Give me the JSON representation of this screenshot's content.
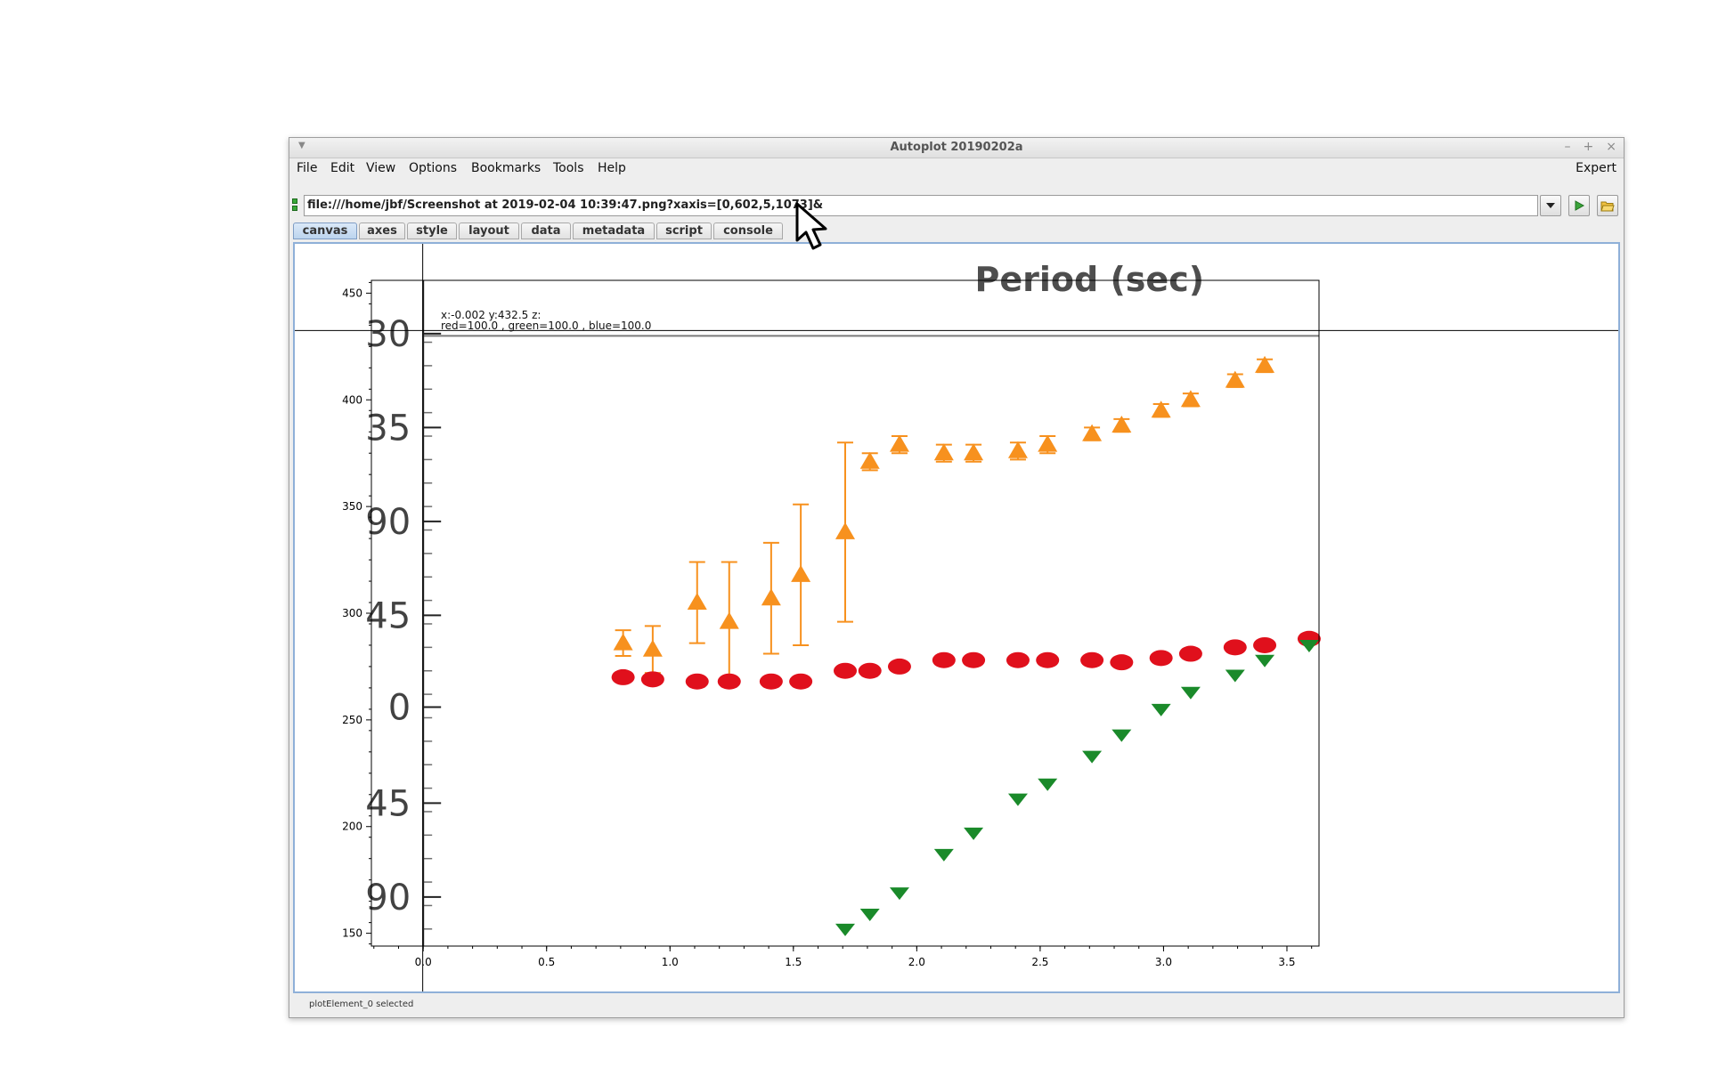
{
  "window": {
    "title": "Autoplot 20190202a",
    "controls": {
      "minimize": "–",
      "maximize": "+",
      "close": "×"
    }
  },
  "menubar": {
    "items": [
      "File",
      "Edit",
      "View",
      "Options",
      "Bookmarks",
      "Tools",
      "Help"
    ],
    "expert_label": "Expert"
  },
  "url": {
    "value": "file:///home/jbf/Screenshot at 2019-02-04 10:39:47.png?xaxis=[0,602,5,1073]&"
  },
  "tabs": [
    "canvas",
    "axes",
    "style",
    "layout",
    "data",
    "metadata",
    "script",
    "console"
  ],
  "readout": {
    "line1": "x:-0.002  y:432.5  z:",
    "line2": "red=100.0 , green=100.0 , blue=100.0"
  },
  "status": "plotElement_0 selected",
  "colors": {
    "orange": "#f7911e",
    "red": "#e0101c",
    "green": "#1a8a2a",
    "selection_border": "#8fb0d8"
  },
  "chart_data": {
    "type": "scatter",
    "xlim": [
      -0.21,
      3.63
    ],
    "ylim": [
      144,
      456
    ],
    "xticks": [
      0.0,
      0.5,
      1.0,
      1.5,
      2.0,
      2.5,
      3.0,
      3.5
    ],
    "xtick_labels": [
      "0.0",
      "0.5",
      "1.0",
      "1.5",
      "2.0",
      "2.5",
      "3.0",
      "3.5"
    ],
    "yticks": [
      150,
      200,
      250,
      300,
      350,
      400,
      450
    ],
    "ytick_labels": [
      "150",
      "200",
      "250",
      "300",
      "350",
      "400",
      "450"
    ],
    "crosshair": {
      "x": -0.002,
      "y": 432.5
    },
    "image_text": {
      "header": "Period (sec)",
      "left_labels": [
        "30",
        "35",
        "90",
        "45",
        "0",
        "45",
        "90"
      ],
      "left_label_y": [
        431,
        387,
        343,
        299,
        256,
        211,
        167
      ]
    },
    "series": [
      {
        "marker": "triangle-up",
        "color": "orange",
        "x": [
          0.81,
          0.93,
          1.11,
          1.24,
          1.41,
          1.53,
          1.71,
          1.81,
          1.93,
          2.11,
          2.23,
          2.41,
          2.53,
          2.71,
          2.83,
          2.99,
          3.11,
          3.29,
          3.41
        ],
        "y": [
          286,
          283,
          305,
          296,
          307,
          318,
          338,
          371,
          379,
          375,
          375,
          376,
          379,
          384,
          388,
          395,
          400,
          409,
          416
        ],
        "err": [
          6,
          11,
          19,
          28,
          26,
          33,
          42,
          4,
          4,
          4,
          4,
          4,
          4,
          3,
          3,
          3,
          3,
          3,
          3
        ]
      },
      {
        "marker": "circle",
        "color": "red",
        "x": [
          0.81,
          0.93,
          1.11,
          1.24,
          1.41,
          1.53,
          1.71,
          1.81,
          1.93,
          2.11,
          2.23,
          2.41,
          2.53,
          2.71,
          2.83,
          2.99,
          3.11,
          3.29,
          3.41,
          3.59
        ],
        "y": [
          270,
          269,
          268,
          268,
          268,
          268,
          273,
          273,
          275,
          278,
          278,
          278,
          278,
          278,
          277,
          279,
          281,
          284,
          285,
          288
        ]
      },
      {
        "marker": "triangle-down",
        "color": "green",
        "x": [
          1.71,
          1.81,
          1.93,
          2.11,
          2.23,
          2.41,
          2.53,
          2.71,
          2.83,
          2.99,
          3.11,
          3.29,
          3.41,
          3.59
        ],
        "y": [
          152,
          159,
          169,
          187,
          197,
          213,
          220,
          233,
          243,
          255,
          263,
          271,
          278,
          285
        ]
      }
    ]
  }
}
